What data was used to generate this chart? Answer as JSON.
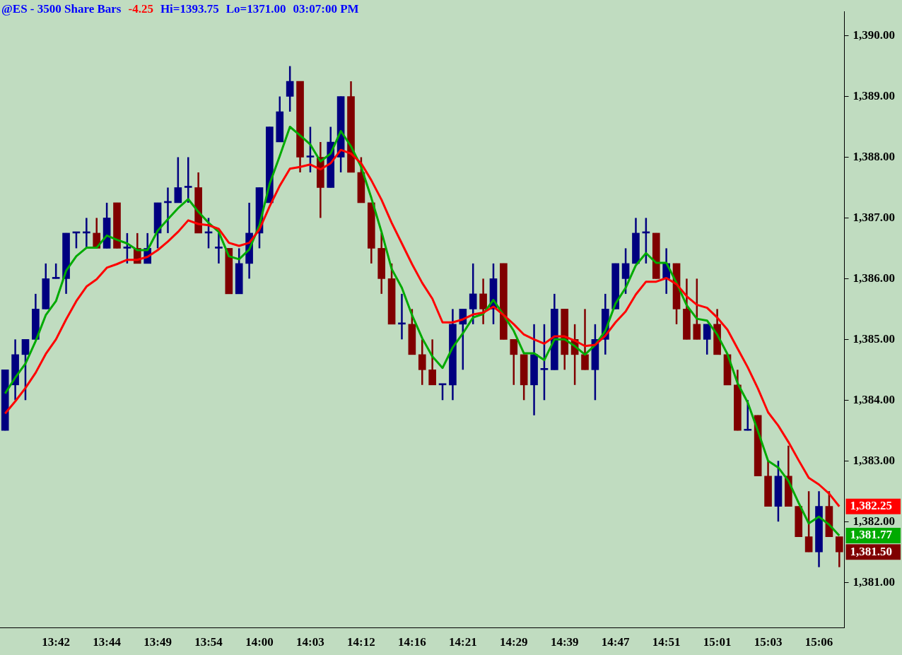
{
  "chart_data": {
    "type": "candlestick",
    "title": "@ES - 3500 Share Bars",
    "annotations": [
      "-4.25",
      "Hi=1393.75",
      "Lo=1371.00",
      "03:07:00 PM"
    ],
    "categories": [
      null,
      null,
      null,
      null,
      null,
      "13:42",
      null,
      null,
      null,
      null,
      "13:44",
      null,
      null,
      null,
      null,
      "13:49",
      null,
      null,
      null,
      null,
      "13:54",
      null,
      null,
      null,
      null,
      "14:00",
      null,
      null,
      null,
      null,
      "14:03",
      null,
      null,
      null,
      null,
      "14:12",
      null,
      null,
      null,
      null,
      "14:16",
      null,
      null,
      null,
      null,
      "14:21",
      null,
      null,
      null,
      null,
      "14:29",
      null,
      null,
      null,
      null,
      "14:39",
      null,
      null,
      null,
      null,
      "14:47",
      null,
      null,
      null,
      null,
      "14:51",
      null,
      null,
      null,
      null,
      "15:01",
      null,
      null,
      null,
      null,
      "15:03",
      null,
      null,
      null,
      null,
      "15:06",
      null,
      null
    ],
    "ohlc": [
      [
        1383.5,
        1384.5,
        1383.5,
        1384.5
      ],
      [
        1384.25,
        1385,
        1384,
        1384.75
      ],
      [
        1384.75,
        1385,
        1384,
        1385
      ],
      [
        1385,
        1385.75,
        1385,
        1385.5
      ],
      [
        1385.5,
        1386.25,
        1385.5,
        1386
      ],
      [
        1386,
        1386.25,
        1386,
        1386
      ],
      [
        1386,
        1386.75,
        1385.75,
        1386.75
      ],
      [
        1386.75,
        1386.75,
        1386.5,
        1386.75
      ],
      [
        1386.75,
        1387,
        1386.5,
        1386.75
      ],
      [
        1386.75,
        1387,
        1386.5,
        1386.5
      ],
      [
        1386.5,
        1387.25,
        1386.5,
        1387
      ],
      [
        1387.25,
        1387.25,
        1386.5,
        1386.5
      ],
      [
        1386.5,
        1386.75,
        1386.25,
        1386.5
      ],
      [
        1386.5,
        1386.75,
        1386.25,
        1386.25
      ],
      [
        1386.25,
        1386.75,
        1386.25,
        1386.5
      ],
      [
        1386.75,
        1387.25,
        1386.5,
        1387.25
      ],
      [
        1387.25,
        1387.5,
        1386.75,
        1387.25
      ],
      [
        1387.25,
        1388,
        1387.25,
        1387.5
      ],
      [
        1387.5,
        1388,
        1387.25,
        1387.5
      ],
      [
        1387.5,
        1387.75,
        1386.75,
        1386.75
      ],
      [
        1386.75,
        1387,
        1386.5,
        1386.75
      ],
      [
        1386.5,
        1386.75,
        1386.25,
        1386.5
      ],
      [
        1386.5,
        1386.5,
        1385.75,
        1385.75
      ],
      [
        1385.75,
        1386.5,
        1385.75,
        1386.25
      ],
      [
        1386.25,
        1387.25,
        1386,
        1386.75
      ],
      [
        1386.75,
        1387.5,
        1386.5,
        1387.5
      ],
      [
        1387.25,
        1388.5,
        1387.25,
        1388.5
      ],
      [
        1388.25,
        1389,
        1388.25,
        1388.75
      ],
      [
        1389,
        1389.5,
        1388.75,
        1389.25
      ],
      [
        1389.25,
        1389.25,
        1387.75,
        1388
      ],
      [
        1388,
        1388.5,
        1387.75,
        1388
      ],
      [
        1388,
        1388.25,
        1387,
        1387.5
      ],
      [
        1387.5,
        1388.5,
        1387.5,
        1388.25
      ],
      [
        1388,
        1389,
        1387.75,
        1389
      ],
      [
        1389,
        1389.25,
        1387.75,
        1387.75
      ],
      [
        1387.75,
        1388,
        1387.25,
        1387.25
      ],
      [
        1387.25,
        1387.25,
        1386.25,
        1386.5
      ],
      [
        1386.5,
        1386.75,
        1385.75,
        1386
      ],
      [
        1386,
        1386.25,
        1385.25,
        1385.25
      ],
      [
        1385.25,
        1385.75,
        1385,
        1385.25
      ],
      [
        1385.25,
        1385.5,
        1384.75,
        1384.75
      ],
      [
        1384.75,
        1385,
        1384.25,
        1384.5
      ],
      [
        1384.5,
        1385,
        1384.25,
        1384.25
      ],
      [
        1384.25,
        1384.25,
        1384,
        1384.25
      ],
      [
        1384.25,
        1385.5,
        1384,
        1385.25
      ],
      [
        1385.25,
        1385.5,
        1384.5,
        1385.5
      ],
      [
        1385.5,
        1386.25,
        1385.25,
        1385.75
      ],
      [
        1385.75,
        1386,
        1385.25,
        1385.5
      ],
      [
        1385.5,
        1386.25,
        1385.25,
        1386
      ],
      [
        1386.25,
        1386.25,
        1385,
        1385
      ],
      [
        1385,
        1385,
        1384.25,
        1384.75
      ],
      [
        1384.75,
        1384.75,
        1384,
        1384.25
      ],
      [
        1384.25,
        1385.25,
        1383.75,
        1384.75
      ],
      [
        1384.5,
        1385.25,
        1384,
        1384.5
      ],
      [
        1384.5,
        1385.75,
        1384.5,
        1385.5
      ],
      [
        1385.5,
        1385.5,
        1384.5,
        1384.75
      ],
      [
        1385,
        1385.25,
        1384.25,
        1384.75
      ],
      [
        1384.75,
        1385.5,
        1384.5,
        1384.5
      ],
      [
        1384.5,
        1385.25,
        1384,
        1385
      ],
      [
        1385,
        1385.75,
        1384.75,
        1385.5
      ],
      [
        1385.5,
        1386.25,
        1385.5,
        1386.25
      ],
      [
        1386,
        1386.5,
        1385.75,
        1386.25
      ],
      [
        1386.25,
        1387,
        1386.25,
        1386.75
      ],
      [
        1386.75,
        1387,
        1386.25,
        1386.75
      ],
      [
        1386.75,
        1386.75,
        1386,
        1386
      ],
      [
        1386,
        1386.5,
        1385.75,
        1386.25
      ],
      [
        1386.25,
        1386.25,
        1385.25,
        1385.5
      ],
      [
        1385.5,
        1386,
        1385,
        1385
      ],
      [
        1385.25,
        1386,
        1385,
        1385
      ],
      [
        1385,
        1385.25,
        1384.75,
        1385.25
      ],
      [
        1385.25,
        1385.5,
        1384.75,
        1384.75
      ],
      [
        1384.75,
        1384.75,
        1384.25,
        1384.25
      ],
      [
        1384.25,
        1384.5,
        1383.5,
        1383.5
      ],
      [
        1383.5,
        1384,
        1383.5,
        1383.5
      ],
      [
        1383.75,
        1383.75,
        1382.75,
        1382.75
      ],
      [
        1382.75,
        1383,
        1382.25,
        1382.25
      ],
      [
        1382.25,
        1383,
        1382,
        1382.75
      ],
      [
        1382.75,
        1383.25,
        1382.25,
        1382.25
      ],
      [
        1382.25,
        1382.25,
        1381.75,
        1381.75
      ],
      [
        1381.75,
        1382.5,
        1381.5,
        1381.5
      ],
      [
        1381.5,
        1382.5,
        1381.25,
        1382.25
      ],
      [
        1382.25,
        1382.5,
        1381.75,
        1381.75
      ],
      [
        1381.75,
        1381.75,
        1381.25,
        1381.5
      ]
    ],
    "colors": [
      "#000080",
      "#000080",
      "#000080",
      "#000080",
      "#000080",
      "#000080",
      "#000080",
      "#000080",
      "#000080",
      "#800000",
      "#000080",
      "#800000",
      "#000080",
      "#800000",
      "#000080",
      "#000080",
      "#000080",
      "#000080",
      "#000080",
      "#800000",
      "#000080",
      "#000080",
      "#800000",
      "#000080",
      "#000080",
      "#000080",
      "#000080",
      "#000080",
      "#000080",
      "#800000",
      "#000080",
      "#800000",
      "#000080",
      "#000080",
      "#800000",
      "#800000",
      "#800000",
      "#800000",
      "#800000",
      "#000080",
      "#800000",
      "#800000",
      "#800000",
      "#000080",
      "#000080",
      "#000080",
      "#000080",
      "#800000",
      "#000080",
      "#800000",
      "#800000",
      "#800000",
      "#000080",
      "#000080",
      "#000080",
      "#800000",
      "#800000",
      "#800000",
      "#000080",
      "#000080",
      "#000080",
      "#000080",
      "#000080",
      "#000080",
      "#800000",
      "#000080",
      "#800000",
      "#800000",
      "#800000",
      "#000080",
      "#800000",
      "#800000",
      "#800000",
      "#000080",
      "#800000",
      "#800000",
      "#000080",
      "#800000",
      "#800000",
      "#800000",
      "#000080",
      "#800000",
      "#800000"
    ],
    "value_labels": [
      null,
      null,
      null,
      null,
      null,
      null,
      null,
      null,
      null,
      null,
      null,
      null,
      null,
      null,
      null,
      null,
      null,
      null,
      null,
      null,
      null,
      null,
      null,
      null,
      null,
      null,
      null,
      null,
      null,
      null,
      null,
      null,
      null,
      null,
      null,
      null,
      null,
      null,
      null,
      null,
      null,
      null,
      null,
      null,
      null,
      null,
      null,
      null,
      null,
      null,
      null,
      null,
      null,
      null,
      null,
      null,
      null,
      null,
      null,
      null,
      null,
      null,
      null,
      null,
      null,
      null,
      null,
      null,
      null,
      null,
      null,
      null,
      null,
      null,
      null,
      null,
      null,
      null,
      null,
      null,
      null,
      null,
      "1,381.50"
    ],
    "series": [
      {
        "type": "line",
        "color": "#ff0000",
        "values": [
          1383.78,
          1383.98,
          1384.2,
          1384.45,
          1384.76,
          1385.0,
          1385.33,
          1385.63,
          1385.87,
          1385.99,
          1386.18,
          1386.24,
          1386.31,
          1386.31,
          1386.36,
          1386.47,
          1386.61,
          1386.77,
          1386.96,
          1386.9,
          1386.88,
          1386.82,
          1386.59,
          1386.54,
          1386.59,
          1386.81,
          1387.19,
          1387.53,
          1387.81,
          1387.84,
          1387.88,
          1387.8,
          1387.9,
          1388.12,
          1388.06,
          1387.9,
          1387.62,
          1387.3,
          1386.92,
          1386.58,
          1386.24,
          1385.93,
          1385.67,
          1385.28,
          1385.28,
          1385.33,
          1385.41,
          1385.44,
          1385.54,
          1385.4,
          1385.25,
          1385.08,
          1385.0,
          1384.93,
          1385.05,
          1385.05,
          1384.98,
          1384.89,
          1384.91,
          1385.06,
          1385.28,
          1385.46,
          1385.74,
          1385.95,
          1385.95,
          1386.01,
          1385.91,
          1385.71,
          1385.57,
          1385.52,
          1385.36,
          1385.16,
          1384.85,
          1384.54,
          1384.19,
          1383.8,
          1383.58,
          1383.31,
          1383.01,
          1382.72,
          1382.61,
          1382.46,
          1382.25
        ],
        "value_labels": [
          null,
          null,
          null,
          null,
          null,
          null,
          null,
          null,
          null,
          null,
          null,
          null,
          null,
          null,
          null,
          null,
          null,
          null,
          null,
          null,
          null,
          null,
          null,
          null,
          null,
          null,
          null,
          null,
          null,
          null,
          null,
          null,
          null,
          null,
          null,
          null,
          null,
          null,
          null,
          null,
          null,
          null,
          null,
          null,
          null,
          null,
          null,
          null,
          null,
          null,
          null,
          null,
          null,
          null,
          null,
          null,
          null,
          null,
          null,
          null,
          null,
          null,
          null,
          null,
          null,
          null,
          null,
          null,
          null,
          null,
          null,
          null,
          null,
          null,
          null,
          null,
          null,
          null,
          null,
          null,
          null,
          null,
          "1,382.25"
        ]
      },
      {
        "type": "line",
        "color": "#00aa00",
        "values": [
          1384.11,
          1384.37,
          1384.6,
          1384.97,
          1385.4,
          1385.63,
          1386.13,
          1386.37,
          1386.51,
          1386.51,
          1386.71,
          1386.64,
          1386.58,
          1386.47,
          1386.47,
          1386.79,
          1386.98,
          1387.16,
          1387.31,
          1387.1,
          1386.92,
          1386.77,
          1386.37,
          1386.32,
          1386.48,
          1386.88,
          1387.56,
          1388.02,
          1388.5,
          1388.36,
          1388.21,
          1387.93,
          1388.06,
          1388.43,
          1388.18,
          1387.84,
          1387.33,
          1386.77,
          1386.16,
          1385.85,
          1385.4,
          1385.02,
          1384.72,
          1384.53,
          1384.87,
          1385.1,
          1385.36,
          1385.42,
          1385.65,
          1385.4,
          1385.14,
          1384.77,
          1384.77,
          1384.66,
          1385.0,
          1385.0,
          1384.89,
          1384.75,
          1384.91,
          1385.14,
          1385.59,
          1385.85,
          1386.22,
          1386.42,
          1386.26,
          1386.26,
          1385.93,
          1385.56,
          1385.34,
          1385.31,
          1385.08,
          1384.76,
          1384.28,
          1383.96,
          1383.49,
          1383.0,
          1382.89,
          1382.67,
          1382.31,
          1381.97,
          1382.08,
          1381.95,
          1381.77
        ],
        "value_labels": [
          null,
          null,
          null,
          null,
          null,
          null,
          null,
          null,
          null,
          null,
          null,
          null,
          null,
          null,
          null,
          null,
          null,
          null,
          null,
          null,
          null,
          null,
          null,
          null,
          null,
          null,
          null,
          null,
          null,
          null,
          null,
          null,
          null,
          null,
          null,
          null,
          null,
          null,
          null,
          null,
          null,
          null,
          null,
          null,
          null,
          null,
          null,
          null,
          null,
          null,
          null,
          null,
          null,
          null,
          null,
          null,
          null,
          null,
          null,
          null,
          null,
          null,
          null,
          null,
          null,
          null,
          null,
          null,
          null,
          null,
          null,
          null,
          null,
          null,
          null,
          null,
          null,
          null,
          null,
          null,
          null,
          null,
          "1,381.77"
        ]
      }
    ],
    "ylim": [
      1380.25,
      1390.4
    ],
    "yticks": [
      {
        "value": 1381,
        "label": "1,381.00"
      },
      {
        "value": 1382,
        "label": "1,382.00"
      },
      {
        "value": 1383,
        "label": "1,383.00"
      },
      {
        "value": 1384,
        "label": "1,384.00"
      },
      {
        "value": 1385,
        "label": "1,385.00"
      },
      {
        "value": 1386,
        "label": "1,386.00"
      },
      {
        "value": 1387,
        "label": "1,387.00"
      },
      {
        "value": 1388,
        "label": "1,388.00"
      },
      {
        "value": 1389,
        "label": "1,389.00"
      },
      {
        "value": 1390,
        "label": "1,390.00"
      }
    ]
  }
}
